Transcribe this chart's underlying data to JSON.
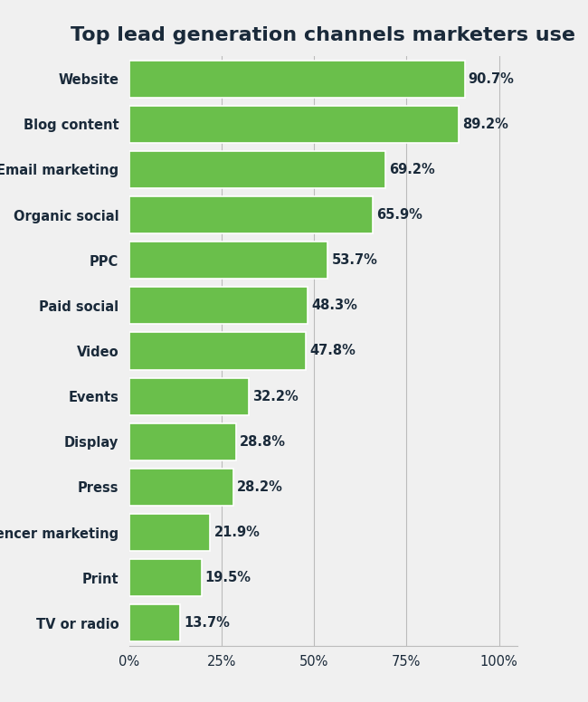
{
  "title": "Top lead generation channels marketers use",
  "categories": [
    "TV or radio",
    "Print",
    "Influencer marketing",
    "Press",
    "Display",
    "Events",
    "Video",
    "Paid social",
    "PPC",
    "Organic social",
    "Email marketing",
    "Blog content",
    "Website"
  ],
  "values": [
    13.7,
    19.5,
    21.9,
    28.2,
    28.8,
    32.2,
    47.8,
    48.3,
    53.7,
    65.9,
    69.2,
    89.2,
    90.7
  ],
  "bar_color": "#6abf4b",
  "label_color": "#1a2a3a",
  "title_color": "#1a2a3a",
  "background_color": "#f0f0f0",
  "xlim": [
    0,
    105
  ],
  "xticks": [
    0,
    25,
    50,
    75,
    100
  ],
  "xtick_labels": [
    "0%",
    "25%",
    "50%",
    "75%",
    "100%"
  ],
  "title_fontsize": 16,
  "label_fontsize": 10.5,
  "value_fontsize": 10.5,
  "bar_height": 0.82,
  "figwidth": 6.5,
  "figheight": 7.76,
  "dpi": 100
}
